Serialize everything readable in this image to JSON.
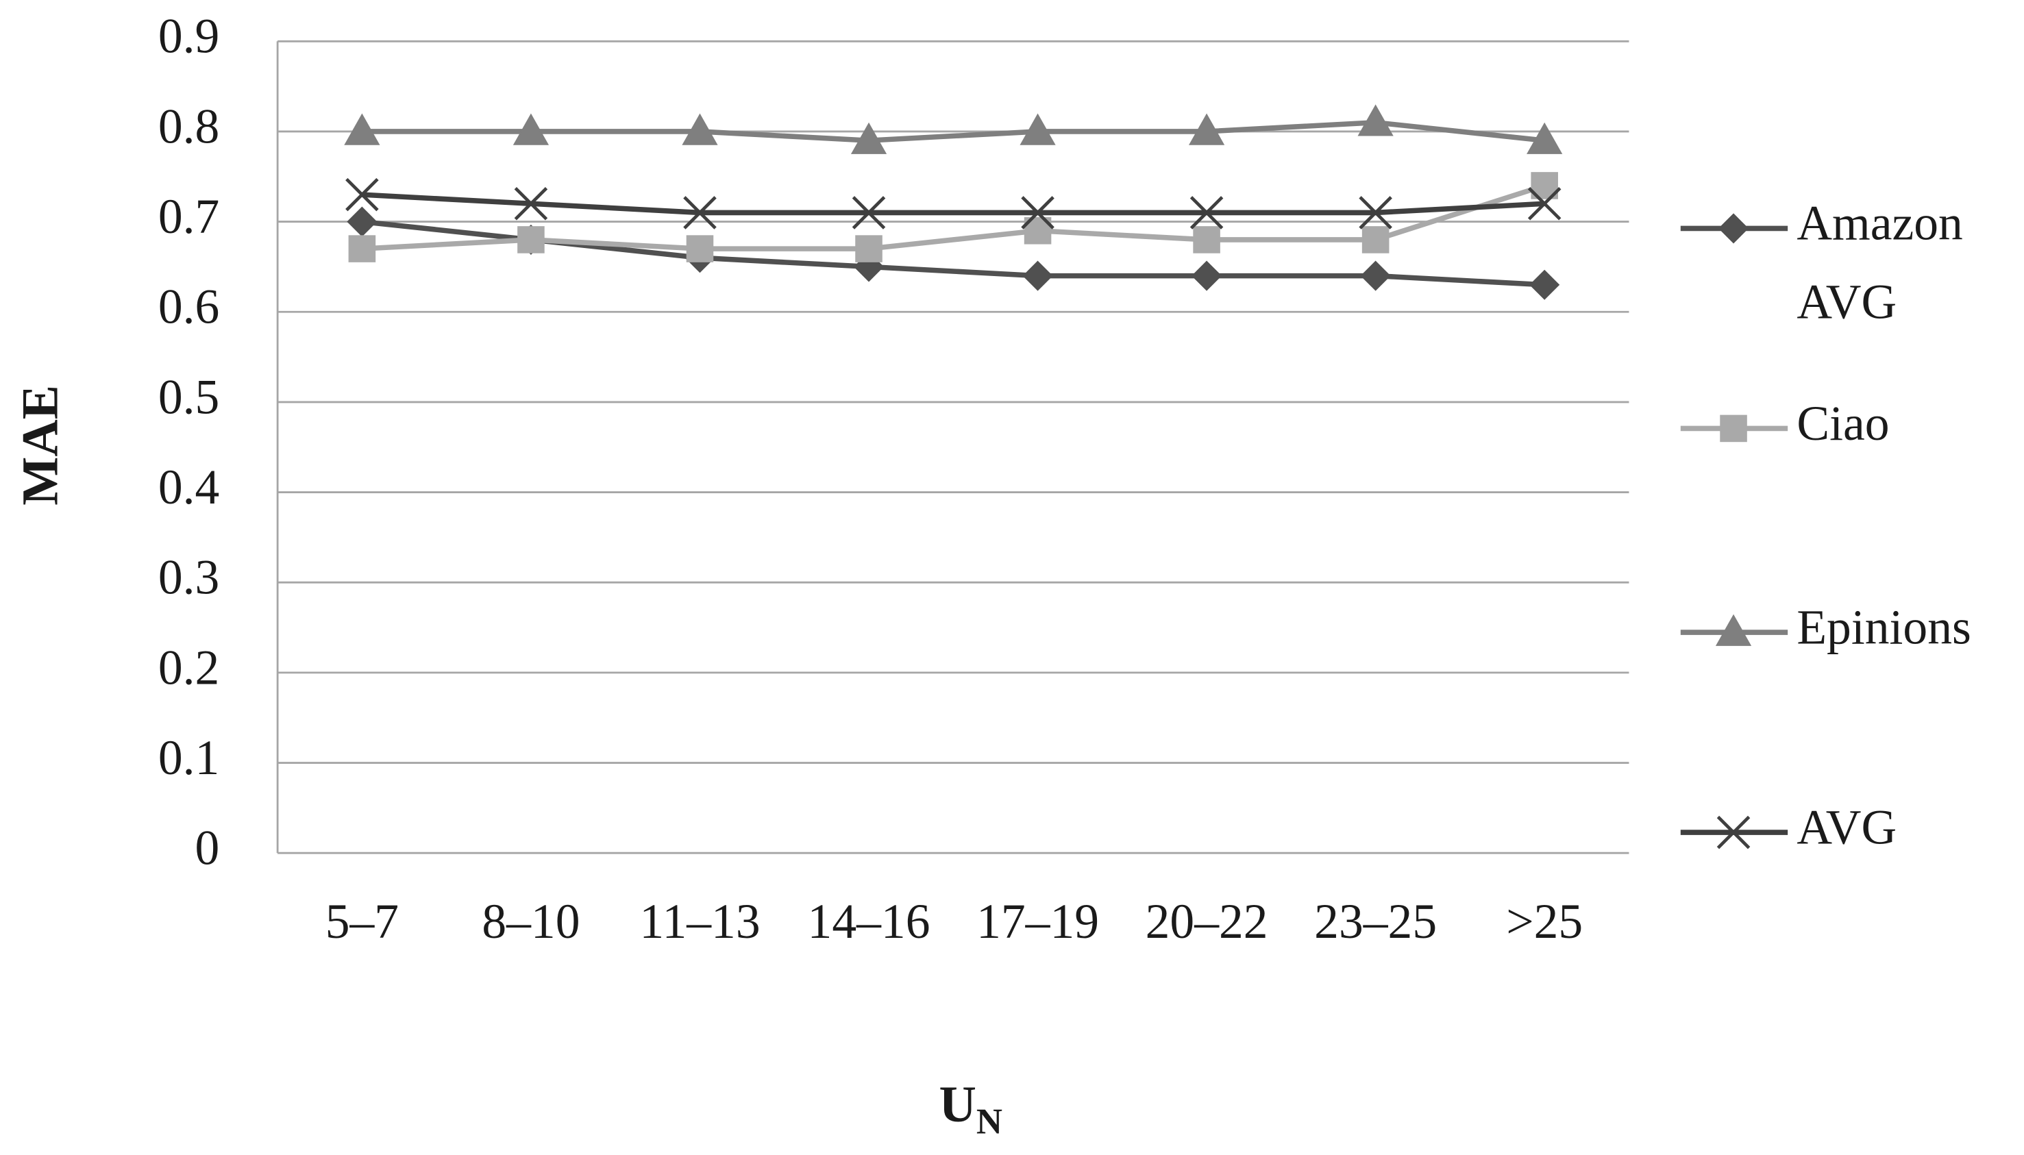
{
  "chart_data": {
    "type": "line",
    "y_label": "MAE",
    "x_label": {
      "text": "U",
      "subscript": "N"
    },
    "categories": [
      "5–7",
      "8–10",
      "11–13",
      "14–16",
      "17–19",
      "20–22",
      "23–25",
      ">25"
    ],
    "ylim": [
      0,
      0.9
    ],
    "yticks": [
      0,
      0.1,
      0.2,
      0.3,
      0.4,
      0.5,
      0.6,
      0.7,
      0.8,
      0.9
    ],
    "grid": true,
    "legend": "right",
    "series": [
      {
        "name": "Amazon AVG",
        "color": "#505050",
        "marker": "diamond",
        "values": [
          0.7,
          0.68,
          0.66,
          0.65,
          0.64,
          0.64,
          0.64,
          0.63
        ]
      },
      {
        "name": "Ciao",
        "color": "#a9a9a9",
        "marker": "square",
        "values": [
          0.67,
          0.68,
          0.67,
          0.67,
          0.69,
          0.68,
          0.68,
          0.74
        ]
      },
      {
        "name": "Epinions",
        "color": "#7f7f7f",
        "marker": "triangle",
        "values": [
          0.8,
          0.8,
          0.8,
          0.79,
          0.8,
          0.8,
          0.81,
          0.79
        ]
      },
      {
        "name": "AVG",
        "color": "#3f3f3f",
        "marker": "x",
        "values": [
          0.73,
          0.72,
          0.71,
          0.71,
          0.71,
          0.71,
          0.71,
          0.72
        ]
      }
    ]
  }
}
